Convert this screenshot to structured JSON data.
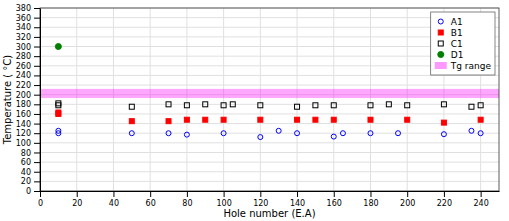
{
  "chart_data": {
    "type": "scatter",
    "x_label": "Hole number (E.A)",
    "y_label": "Temperature ( °C)",
    "xlim": [
      0,
      250
    ],
    "ylim": [
      0,
      380
    ],
    "xticks": [
      0,
      20,
      40,
      60,
      80,
      100,
      120,
      140,
      160,
      180,
      200,
      220,
      240
    ],
    "yticks": [
      0,
      20,
      40,
      60,
      80,
      100,
      120,
      140,
      160,
      180,
      200,
      220,
      240,
      260,
      280,
      300,
      320,
      340,
      360,
      380
    ],
    "grid": true,
    "legend": "upper right",
    "bands": [
      {
        "name": "Tg range",
        "low": 193,
        "high": 212,
        "color": "#ff00ff"
      }
    ],
    "series": [
      {
        "name": "A1",
        "color": "blue",
        "marker": "open-circle",
        "x": [
          10,
          10,
          50,
          70,
          80,
          100,
          120,
          130,
          140,
          160,
          165,
          180,
          195,
          220,
          235,
          240
        ],
        "values": [
          120,
          125,
          120,
          120,
          117,
          120,
          112,
          125,
          120,
          113,
          120,
          120,
          120,
          118,
          125,
          120
        ]
      },
      {
        "name": "B1",
        "color": "red",
        "marker": "square",
        "x": [
          10,
          10,
          50,
          70,
          80,
          90,
          100,
          120,
          140,
          150,
          160,
          180,
          200,
          220,
          240
        ],
        "values": [
          160,
          163,
          145,
          145,
          148,
          148,
          148,
          148,
          148,
          148,
          148,
          148,
          148,
          142,
          148
        ]
      },
      {
        "name": "C1",
        "color": "black",
        "marker": "open-square",
        "x": [
          10,
          10,
          50,
          70,
          80,
          90,
          100,
          105,
          120,
          140,
          150,
          160,
          180,
          190,
          200,
          220,
          235,
          240
        ],
        "values": [
          178,
          182,
          175,
          180,
          178,
          180,
          178,
          180,
          178,
          175,
          178,
          178,
          178,
          180,
          178,
          180,
          175,
          178
        ]
      },
      {
        "name": "D1",
        "color": "green",
        "marker": "circle",
        "x": [
          10
        ],
        "values": [
          300
        ]
      }
    ]
  }
}
